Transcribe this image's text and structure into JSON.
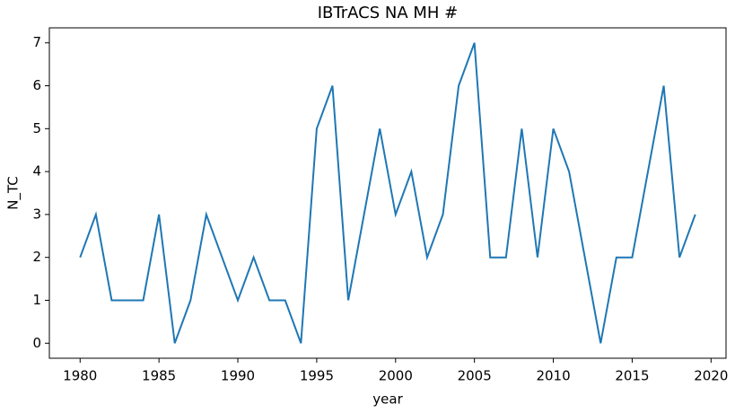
{
  "chart_data": {
    "type": "line",
    "title": "IBTrACS NA MH #",
    "x_label": "year",
    "y_label": "N_TC",
    "x": [
      1980,
      1981,
      1982,
      1983,
      1984,
      1985,
      1986,
      1987,
      1988,
      1989,
      1990,
      1991,
      1992,
      1993,
      1994,
      1995,
      1996,
      1997,
      1998,
      1999,
      2000,
      2001,
      2002,
      2003,
      2004,
      2005,
      2006,
      2007,
      2008,
      2009,
      2010,
      2011,
      2012,
      2013,
      2014,
      2015,
      2016,
      2017,
      2018,
      2019
    ],
    "series": [
      {
        "name": "N_TC",
        "color": "#1f77b4",
        "values": [
          2,
          3,
          1,
          1,
          1,
          3,
          0,
          1,
          3,
          2,
          1,
          2,
          1,
          1,
          0,
          5,
          6,
          1,
          3,
          5,
          3,
          4,
          2,
          3,
          6,
          7,
          2,
          2,
          5,
          2,
          5,
          4,
          2,
          0,
          2,
          2,
          4,
          6,
          2,
          3
        ]
      }
    ],
    "xlim": [
      1978.05,
      2020.95
    ],
    "xticks": [
      1980,
      1985,
      1990,
      1995,
      2000,
      2005,
      2010,
      2015,
      2020
    ],
    "ylim": [
      -0.35,
      7.35
    ],
    "yticks": [
      0,
      1,
      2,
      3,
      4,
      5,
      6,
      7
    ]
  }
}
